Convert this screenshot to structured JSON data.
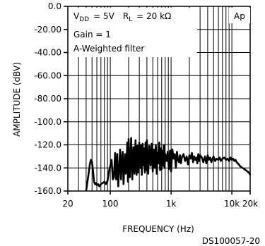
{
  "chart_data": {
    "type": "line",
    "title": "",
    "xlabel": "FREQUENCY (Hz)",
    "ylabel": "AMPLITUDE (dBV)",
    "x_scale": "log",
    "xlim": [
      20,
      20000
    ],
    "ylim": [
      -160,
      0
    ],
    "x_ticks": [
      {
        "value": 20,
        "label": "20"
      },
      {
        "value": 100,
        "label": "100"
      },
      {
        "value": 1000,
        "label": "1k"
      },
      {
        "value": 10000,
        "label": "10k"
      },
      {
        "value": 20000,
        "label": "20k"
      }
    ],
    "y_ticks": [
      {
        "value": 0,
        "label": "0.0"
      },
      {
        "value": -20,
        "label": "-20.00"
      },
      {
        "value": -40,
        "label": "-40.00"
      },
      {
        "value": -60,
        "label": "-60.00"
      },
      {
        "value": -80,
        "label": "-80.00"
      },
      {
        "value": -100,
        "label": "-100.0"
      },
      {
        "value": -120,
        "label": "-120.0"
      },
      {
        "value": -140,
        "label": "-140.0"
      },
      {
        "value": -160,
        "label": "-160.0"
      }
    ],
    "grid": true,
    "annotations": {
      "line1_vdd": "V",
      "line1_vdd_sub": "DD",
      "line1_vdd_val": "= 5V",
      "line1_rl": "R",
      "line1_rl_sub": "L",
      "line1_rl_val": "= 20 kΩ",
      "line2": "Gain = 1",
      "line3": "A-Weighted filter",
      "corner_tag": "Ap"
    },
    "figure_id": "DS100057-20",
    "series": [
      {
        "color": "#000000",
        "x": [
          40,
          42,
          44,
          46,
          48,
          50,
          52,
          54,
          56,
          58,
          60,
          63,
          66,
          70,
          75,
          80,
          85,
          90,
          95,
          100,
          105,
          110,
          115,
          120,
          125,
          130,
          135,
          140,
          145,
          150,
          155,
          160,
          165,
          170,
          175,
          180,
          185,
          190,
          195,
          200,
          210,
          220,
          230,
          240,
          250,
          260,
          270,
          280,
          290,
          300,
          310,
          320,
          330,
          340,
          350,
          360,
          370,
          380,
          390,
          400,
          420,
          440,
          460,
          480,
          500,
          520,
          540,
          560,
          580,
          600,
          620,
          640,
          660,
          680,
          700,
          720,
          740,
          760,
          780,
          800,
          840,
          880,
          920,
          960,
          1000,
          1050,
          1100,
          1150,
          1200,
          1250,
          1300,
          1350,
          1400,
          1450,
          1500,
          1600,
          1700,
          1800,
          1900,
          2000,
          2100,
          2200,
          2300,
          2400,
          2500,
          2600,
          2700,
          2800,
          2900,
          3000,
          3200,
          3400,
          3600,
          3800,
          4000,
          4200,
          4400,
          4600,
          4800,
          5000,
          5300,
          5600,
          6000,
          6300,
          6600,
          7000,
          7500,
          8000,
          8500,
          9000,
          9500,
          10000,
          10500,
          11000,
          11500,
          12000,
          12500,
          13000,
          13500,
          14000,
          15000,
          16000,
          17000,
          18000,
          19000,
          20000
        ],
        "y": [
          -160,
          -152,
          -145,
          -137,
          -133,
          -135,
          -143,
          -152,
          -154,
          -153,
          -155,
          -154,
          -156,
          -154,
          -153,
          -152,
          -154,
          -151,
          -143,
          -138,
          -133,
          -150,
          -148,
          -127,
          -150,
          -128,
          -156,
          -140,
          -124,
          -150,
          -132,
          -126,
          -154,
          -138,
          -128,
          -145,
          -135,
          -118,
          -152,
          -115,
          -148,
          -114,
          -150,
          -122,
          -145,
          -116,
          -146,
          -121,
          -144,
          -118,
          -140,
          -120,
          -146,
          -119,
          -138,
          -123,
          -144,
          -118,
          -142,
          -116,
          -145,
          -121,
          -138,
          -119,
          -143,
          -124,
          -140,
          -120,
          -145,
          -127,
          -136,
          -118,
          -142,
          -123,
          -141,
          -125,
          -138,
          -120,
          -140,
          -128,
          -134,
          -126,
          -141,
          -125,
          -143,
          -124,
          -132,
          -128,
          -140,
          -126,
          -133,
          -135,
          -129,
          -136,
          -131,
          -128,
          -134,
          -130,
          -137,
          -129,
          -132,
          -127,
          -135,
          -130,
          -133,
          -131,
          -136,
          -128,
          -134,
          -129,
          -131,
          -135,
          -130,
          -136,
          -129,
          -133,
          -131,
          -135,
          -132,
          -130,
          -134,
          -132,
          -133,
          -131,
          -134,
          -132,
          -131,
          -133,
          -132,
          -134,
          -131,
          -133,
          -132,
          -134,
          -133,
          -135,
          -136,
          -137,
          -138,
          -139,
          -140,
          -141,
          -142,
          -143,
          -144,
          -146
        ]
      }
    ]
  }
}
